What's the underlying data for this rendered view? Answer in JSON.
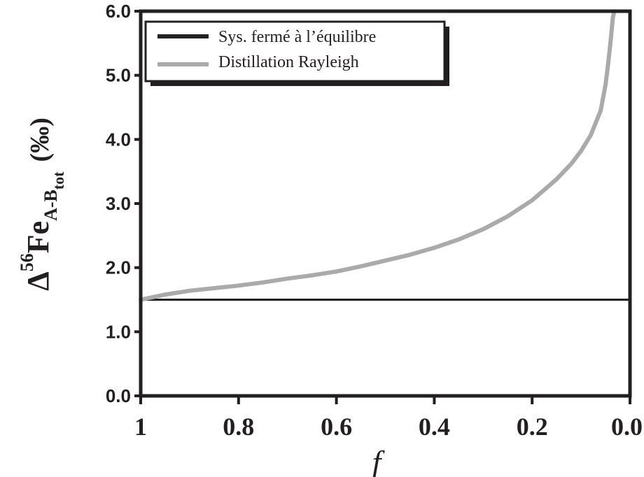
{
  "chart_data": {
    "type": "line",
    "xlabel": "f",
    "ylabel": {
      "prefix": "Δ",
      "superscript": "56",
      "element": "Fe",
      "subscript": "A-B",
      "subsubscript": "tot",
      "unit": "(‰)"
    },
    "xlim": [
      1,
      0
    ],
    "ylim": [
      0,
      6
    ],
    "x_ticks": [
      {
        "value": 1,
        "label": "1"
      },
      {
        "value": 0.8,
        "label": "0.8"
      },
      {
        "value": 0.6,
        "label": "0.6"
      },
      {
        "value": 0.4,
        "label": "0.4"
      },
      {
        "value": 0.2,
        "label": "0.2"
      },
      {
        "value": 0.0,
        "label": "0.0"
      }
    ],
    "y_ticks": [
      {
        "value": 0,
        "label": "0.0"
      },
      {
        "value": 1,
        "label": "1.0"
      },
      {
        "value": 2,
        "label": "2.0"
      },
      {
        "value": 3,
        "label": "3.0"
      },
      {
        "value": 4,
        "label": "4.0"
      },
      {
        "value": 5,
        "label": "5.0"
      },
      {
        "value": 6,
        "label": "6.0"
      }
    ],
    "grid": false,
    "legend_position": "top-left",
    "series": [
      {
        "name": "Sys. fermé à l’équilibre",
        "color": "#222222",
        "x": [
          1,
          0.0
        ],
        "y": [
          1.5,
          1.5
        ]
      },
      {
        "name": "Distillation Rayleigh",
        "color": "#aaaaaa",
        "x": [
          1,
          0.95,
          0.9,
          0.85,
          0.8,
          0.75,
          0.7,
          0.65,
          0.6,
          0.55,
          0.5,
          0.45,
          0.4,
          0.35,
          0.3,
          0.25,
          0.2,
          0.15,
          0.12,
          0.1,
          0.08,
          0.06,
          0.05,
          0.045,
          0.04,
          0.035,
          0.032
        ],
        "y": [
          1.5,
          1.58,
          1.64,
          1.68,
          1.72,
          1.77,
          1.83,
          1.88,
          1.94,
          2.02,
          2.11,
          2.2,
          2.31,
          2.44,
          2.6,
          2.8,
          3.05,
          3.38,
          3.62,
          3.82,
          4.07,
          4.45,
          4.85,
          5.15,
          5.5,
          5.9,
          6.0
        ]
      }
    ]
  }
}
